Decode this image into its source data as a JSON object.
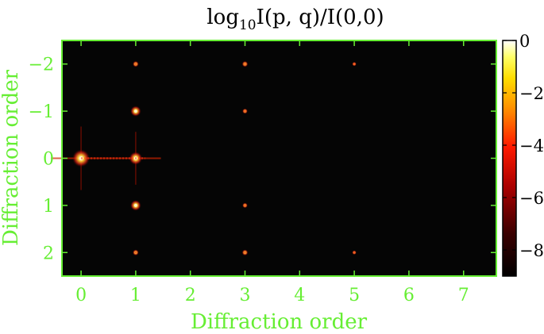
{
  "chart_data": {
    "type": "heatmap",
    "title_main": "log",
    "title_sub": "10",
    "title_rest": "I(p, q)/I(0,0)",
    "xlabel": "Diffraction order",
    "ylabel": "Diffraction order",
    "xlim": [
      -0.35,
      7.6
    ],
    "ylim": [
      2.5,
      -2.5
    ],
    "x_ticks": [
      0,
      1,
      2,
      3,
      4,
      5,
      6,
      7
    ],
    "y_ticks": [
      -2,
      -1,
      0,
      1,
      2
    ],
    "x_tick_labels": [
      "0",
      "1",
      "2",
      "3",
      "4",
      "5",
      "6",
      "7"
    ],
    "y_tick_labels": [
      "−2",
      "−1",
      "0",
      "1",
      "2"
    ],
    "colorbar": {
      "range": [
        -9,
        0
      ],
      "ticks": [
        0,
        -2,
        -4,
        -6,
        -8
      ],
      "tick_labels": [
        "0",
        "−2",
        "−4",
        "−6",
        "−8"
      ]
    },
    "peaks": [
      {
        "p": 0,
        "q": 0,
        "value": 0
      },
      {
        "p": 1,
        "q": 0,
        "value": -1.5
      },
      {
        "p": 1,
        "q": -1,
        "value": -2.5
      },
      {
        "p": 1,
        "q": 1,
        "value": -2.5
      },
      {
        "p": 1,
        "q": -2,
        "value": -5
      },
      {
        "p": 1,
        "q": 2,
        "value": -5
      },
      {
        "p": 3,
        "q": -2,
        "value": -5
      },
      {
        "p": 3,
        "q": -1,
        "value": -5.5
      },
      {
        "p": 3,
        "q": 1,
        "value": -5.5
      },
      {
        "p": 3,
        "q": 2,
        "value": -5
      },
      {
        "p": 5,
        "q": -2,
        "value": -6.5
      },
      {
        "p": 5,
        "q": 2,
        "value": -6.5
      }
    ],
    "background_value": -9,
    "axis_color": "#66ee33",
    "label_color": "#66ee33"
  }
}
